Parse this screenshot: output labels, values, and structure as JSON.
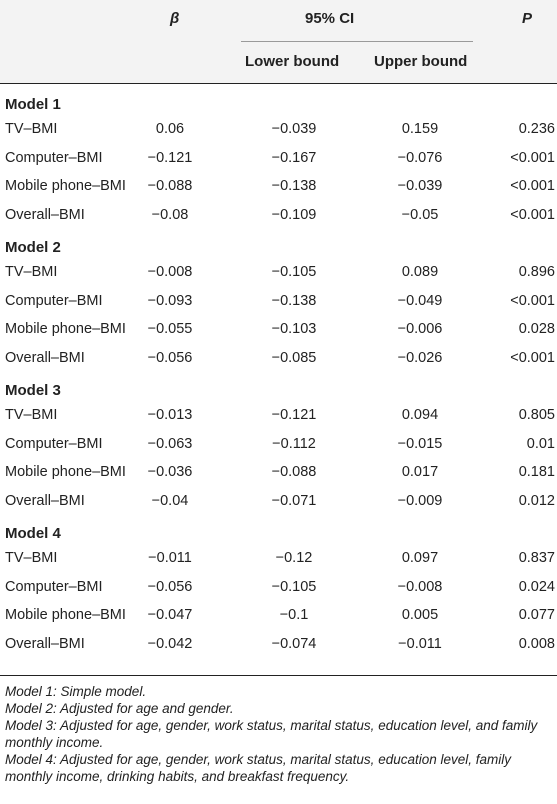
{
  "header": {
    "beta": "β",
    "ci": "95% CI",
    "lower": "Lower bound",
    "upper": "Upper bound",
    "p": "P"
  },
  "models": [
    {
      "title": "Model 1",
      "rows": [
        {
          "label": "TV–BMI",
          "beta": "0.06",
          "lower": "−0.039",
          "upper": "0.159",
          "p": "0.236"
        },
        {
          "label": "Computer–BMI",
          "beta": "−0.121",
          "lower": "−0.167",
          "upper": "−0.076",
          "p": "<0.001"
        },
        {
          "label": "Mobile phone–BMI",
          "beta": "−0.088",
          "lower": "−0.138",
          "upper": "−0.039",
          "p": "<0.001"
        },
        {
          "label": "Overall–BMI",
          "beta": "−0.08",
          "lower": "−0.109",
          "upper": "−0.05",
          "p": "<0.001"
        }
      ]
    },
    {
      "title": "Model 2",
      "rows": [
        {
          "label": "TV–BMI",
          "beta": "−0.008",
          "lower": "−0.105",
          "upper": "0.089",
          "p": "0.896"
        },
        {
          "label": "Computer–BMI",
          "beta": "−0.093",
          "lower": "−0.138",
          "upper": "−0.049",
          "p": "<0.001"
        },
        {
          "label": "Mobile phone–BMI",
          "beta": "−0.055",
          "lower": "−0.103",
          "upper": "−0.006",
          "p": "0.028"
        },
        {
          "label": "Overall–BMI",
          "beta": "−0.056",
          "lower": "−0.085",
          "upper": "−0.026",
          "p": "<0.001"
        }
      ]
    },
    {
      "title": "Model 3",
      "rows": [
        {
          "label": "TV–BMI",
          "beta": "−0.013",
          "lower": "−0.121",
          "upper": "0.094",
          "p": "0.805"
        },
        {
          "label": "Computer–BMI",
          "beta": "−0.063",
          "lower": "−0.112",
          "upper": "−0.015",
          "p": "0.01"
        },
        {
          "label": "Mobile phone–BMI",
          "beta": "−0.036",
          "lower": "−0.088",
          "upper": "0.017",
          "p": "0.181"
        },
        {
          "label": "Overall–BMI",
          "beta": "−0.04",
          "lower": "−0.071",
          "upper": "−0.009",
          "p": "0.012"
        }
      ]
    },
    {
      "title": "Model 4",
      "rows": [
        {
          "label": "TV–BMI",
          "beta": "−0.011",
          "lower": "−0.12",
          "upper": "0.097",
          "p": "0.837"
        },
        {
          "label": "Computer–BMI",
          "beta": "−0.056",
          "lower": "−0.105",
          "upper": "−0.008",
          "p": "0.024"
        },
        {
          "label": "Mobile phone–BMI",
          "beta": "−0.047",
          "lower": "−0.1",
          "upper": "0.005",
          "p": "0.077"
        },
        {
          "label": "Overall–BMI",
          "beta": "−0.042",
          "lower": "−0.074",
          "upper": "−0.011",
          "p": "0.008"
        }
      ]
    }
  ],
  "notes": [
    "Model 1: Simple model.",
    "Model 2: Adjusted for age and gender.",
    "Model 3: Adjusted for age, gender, work status, marital status, education level, and family monthly income.",
    "Model 4: Adjusted for age, gender, work status, marital status, education level, family monthly income, drinking habits, and breakfast frequency."
  ]
}
